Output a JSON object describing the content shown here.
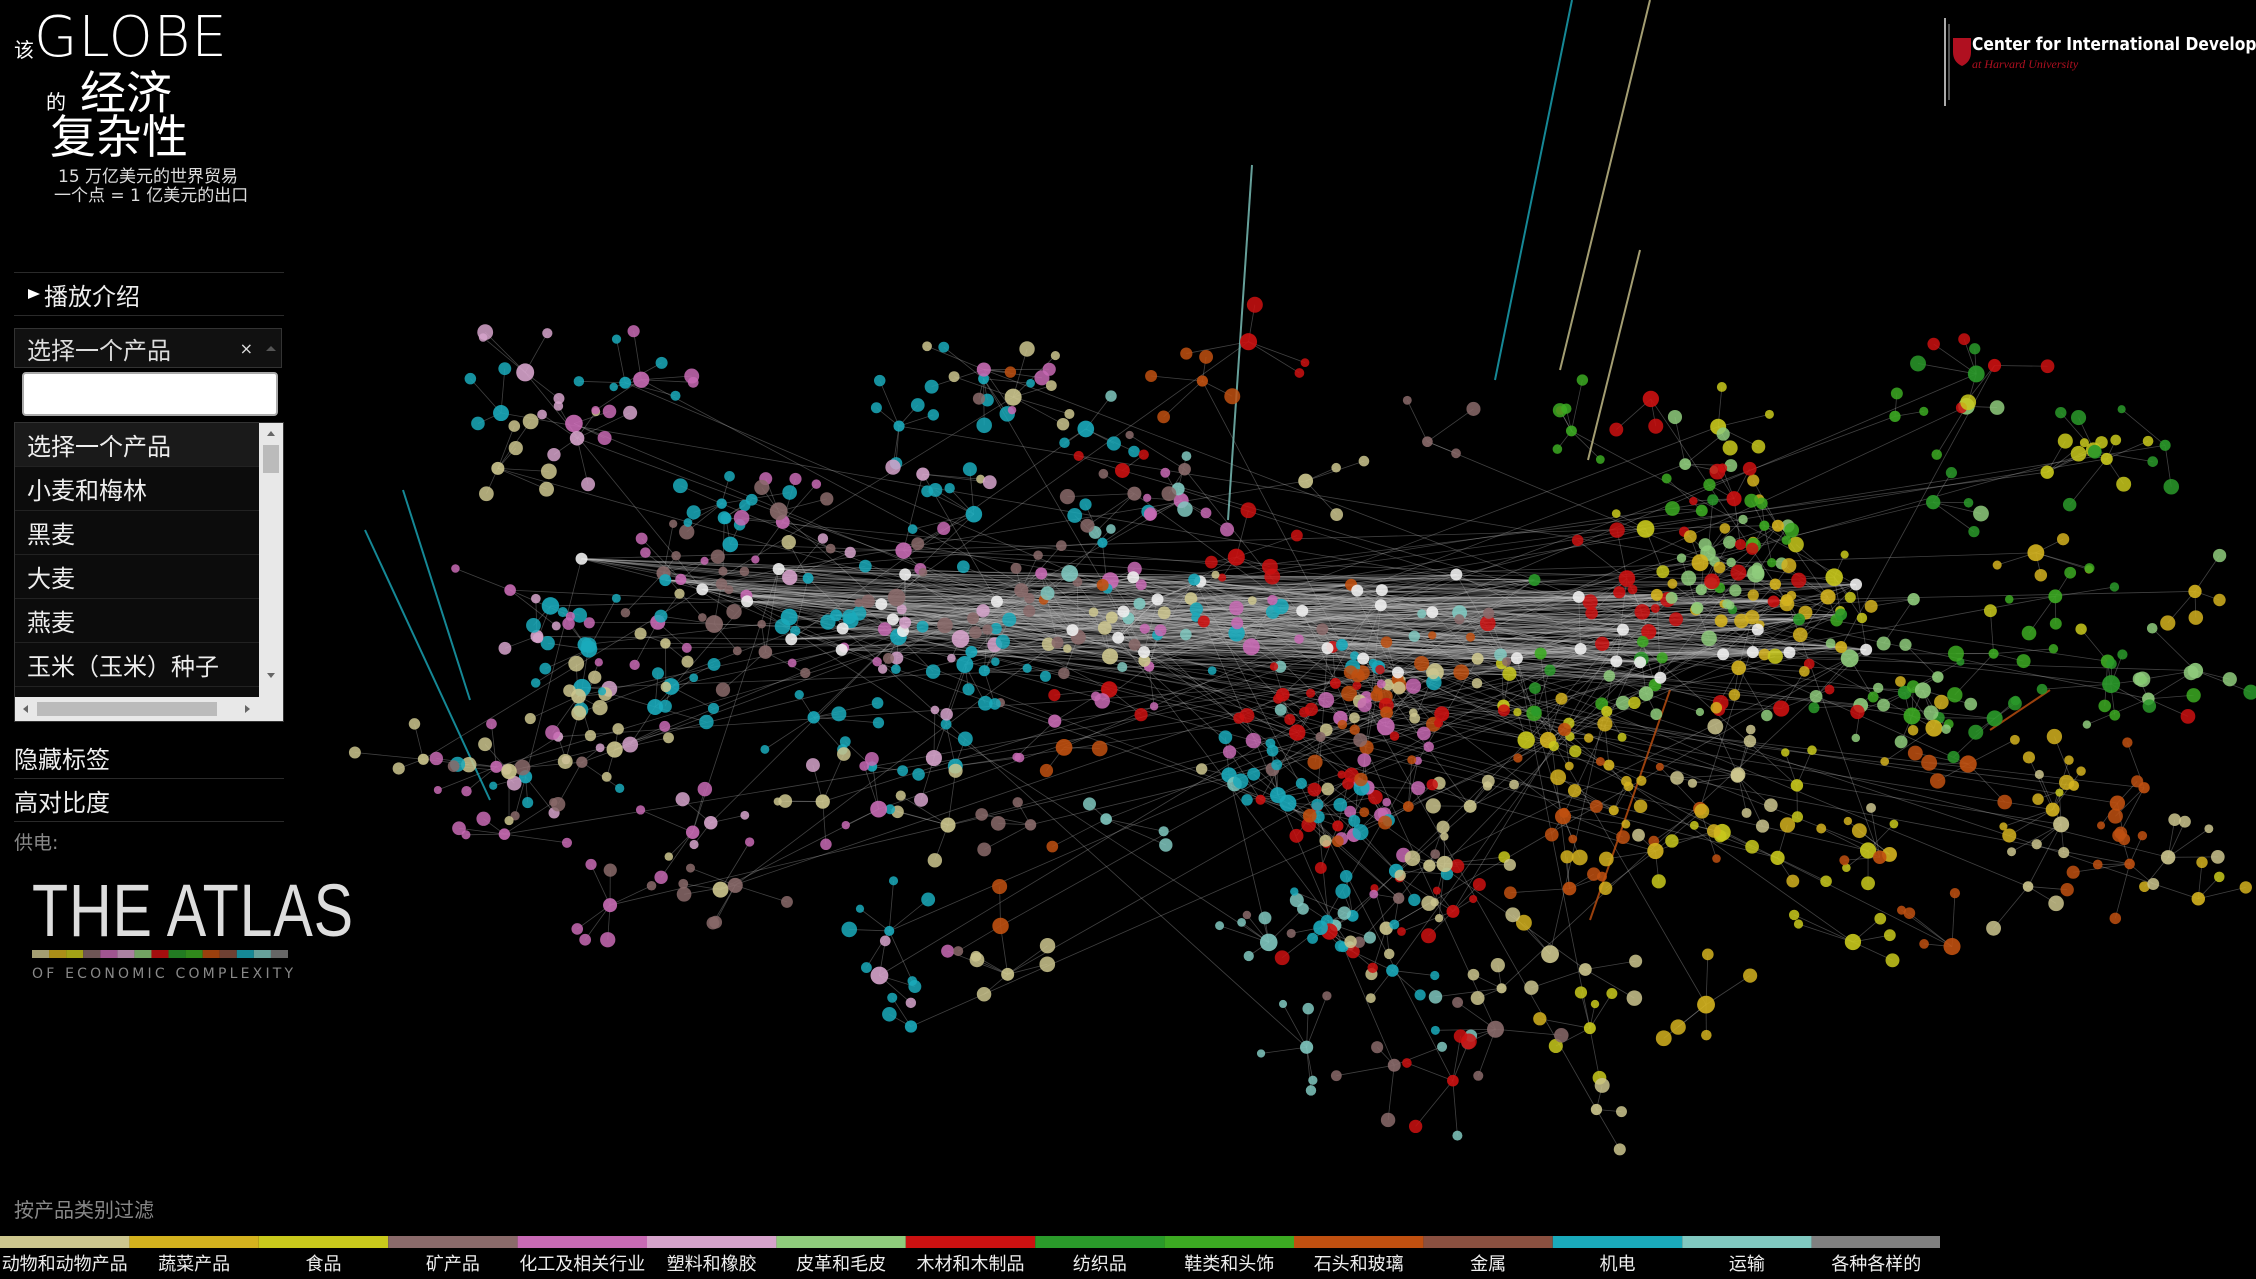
{
  "header": {
    "prefix": "该",
    "globe": "GLOBE",
    "of": "的",
    "economic": "经济",
    "complexity": "复杂性",
    "subtitle_lines": [
      "15 万亿美元的世界贸易",
      "一个点 = 1 亿美元的出口"
    ]
  },
  "sidebar": {
    "play_intro": "播放介绍",
    "select_placeholder": "选择一个产品",
    "clear": "×",
    "options": [
      "选择一个产品",
      "小麦和梅林",
      "黑麦",
      "大麦",
      "燕麦",
      "玉米（玉米）种子"
    ],
    "hide_labels": "隐藏标签",
    "high_contrast": "高对比度",
    "powered_by": "供电:"
  },
  "atlas_logo": {
    "title": "THE ATLAS",
    "subtitle": "OF ECONOMIC COMPLEXITY"
  },
  "cid_logo": {
    "name": "Center for International Development",
    "affiliation": "at Harvard University"
  },
  "filter": {
    "label": "按产品类别过滤",
    "categories": [
      {
        "name": "动物和动物产品",
        "color": "#cdc68e"
      },
      {
        "name": "蔬菜产品",
        "color": "#d4b21e"
      },
      {
        "name": "食品",
        "color": "#c9c91c"
      },
      {
        "name": "矿产品",
        "color": "#8a6a6a"
      },
      {
        "name": "化工及相关行业",
        "color": "#c86ab4"
      },
      {
        "name": "塑料和橡胶",
        "color": "#d6a3cb"
      },
      {
        "name": "皮革和毛皮",
        "color": "#8fcc7c"
      },
      {
        "name": "木材和木制品",
        "color": "#cc1111"
      },
      {
        "name": "纺织品",
        "color": "#2a9a2a"
      },
      {
        "name": "鞋类和头饰",
        "color": "#3caa22"
      },
      {
        "name": "石头和玻璃",
        "color": "#c05010"
      },
      {
        "name": "金属",
        "color": "#8a5040"
      },
      {
        "name": "机电",
        "color": "#1aaabb"
      },
      {
        "name": "运输",
        "color": "#80c8c0"
      },
      {
        "name": "各种各样的",
        "color": "#808080"
      }
    ]
  }
}
